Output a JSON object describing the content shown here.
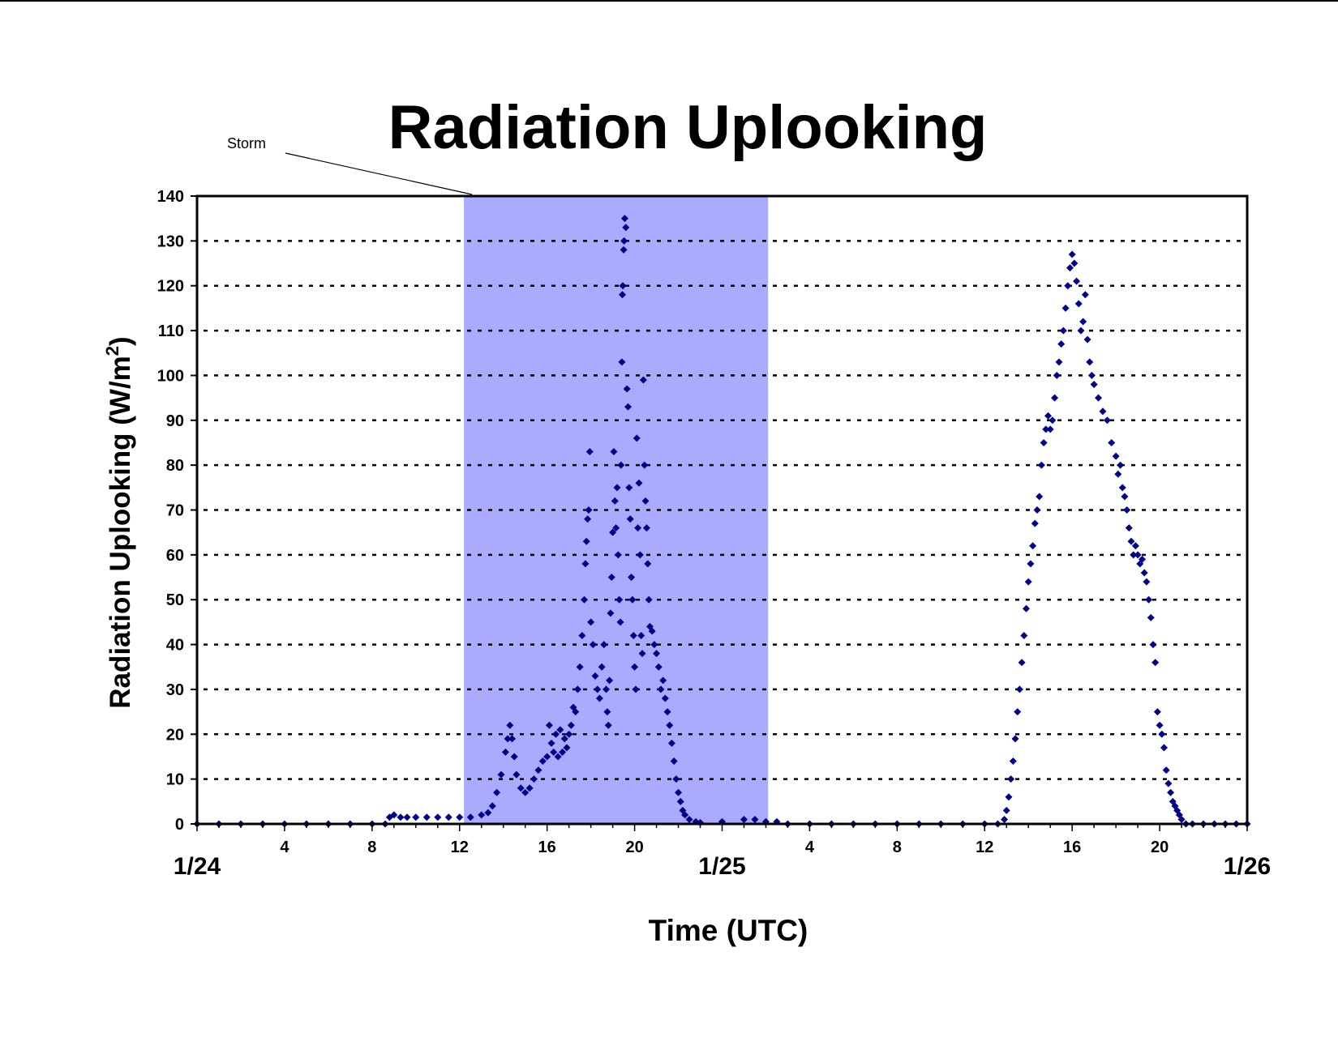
{
  "chart_data": {
    "type": "scatter",
    "title": "Radiation Uplooking",
    "xlabel": "Time (UTC)",
    "ylabel": "Radiation Uplooking (W/m",
    "ylabel_sup": "2",
    "ylabel_close": ")",
    "ylim": [
      0,
      140
    ],
    "yticks": [
      0,
      10,
      20,
      30,
      40,
      50,
      60,
      70,
      80,
      90,
      100,
      110,
      120,
      130,
      140
    ],
    "xlim_hours": [
      0,
      48
    ],
    "hour_ticks": [
      {
        "hour": 4,
        "label": "4"
      },
      {
        "hour": 8,
        "label": "8"
      },
      {
        "hour": 12,
        "label": "12"
      },
      {
        "hour": 16,
        "label": "16"
      },
      {
        "hour": 20,
        "label": "20"
      },
      {
        "hour": 28,
        "label": "4"
      },
      {
        "hour": 32,
        "label": "8"
      },
      {
        "hour": 36,
        "label": "12"
      },
      {
        "hour": 40,
        "label": "16"
      },
      {
        "hour": 44,
        "label": "20"
      }
    ],
    "day_ticks": [
      {
        "hour": 0,
        "label": "1/24"
      },
      {
        "hour": 24,
        "label": "1/25"
      },
      {
        "hour": 48,
        "label": "1/26"
      }
    ],
    "grid": "horizontal-dashed",
    "marker_color": "#00008B",
    "shade_color": "#AAAAFF",
    "annotation": {
      "text": "Storm",
      "x_start": 12.2,
      "x_end": 26.1
    },
    "series": [
      {
        "points": [
          [
            0.0,
            0
          ],
          [
            1.0,
            0
          ],
          [
            2.0,
            0
          ],
          [
            3.0,
            0
          ],
          [
            4.0,
            0
          ],
          [
            5.0,
            0
          ],
          [
            6.0,
            0
          ],
          [
            7.0,
            0
          ],
          [
            8.0,
            0
          ],
          [
            8.6,
            0
          ],
          [
            8.8,
            1.5
          ],
          [
            9.0,
            2
          ],
          [
            9.3,
            1.5
          ],
          [
            9.6,
            1.5
          ],
          [
            10.0,
            1.5
          ],
          [
            10.5,
            1.5
          ],
          [
            11.0,
            1.5
          ],
          [
            11.5,
            1.5
          ],
          [
            12.0,
            1.5
          ],
          [
            12.5,
            1.5
          ],
          [
            13.0,
            2
          ],
          [
            13.3,
            2.5
          ],
          [
            13.5,
            4
          ],
          [
            13.7,
            7
          ],
          [
            13.9,
            11
          ],
          [
            14.1,
            16
          ],
          [
            14.2,
            19
          ],
          [
            14.3,
            22
          ],
          [
            14.4,
            19
          ],
          [
            14.5,
            15
          ],
          [
            14.6,
            11
          ],
          [
            14.8,
            8
          ],
          [
            15.0,
            7
          ],
          [
            15.2,
            8
          ],
          [
            15.4,
            10
          ],
          [
            15.6,
            12
          ],
          [
            15.8,
            14
          ],
          [
            16.0,
            15
          ],
          [
            16.1,
            22
          ],
          [
            16.2,
            18
          ],
          [
            16.3,
            16
          ],
          [
            16.4,
            20
          ],
          [
            16.5,
            15
          ],
          [
            16.6,
            21
          ],
          [
            16.7,
            16
          ],
          [
            16.8,
            19
          ],
          [
            16.9,
            17
          ],
          [
            17.0,
            20
          ],
          [
            17.1,
            22
          ],
          [
            17.2,
            26
          ],
          [
            17.3,
            25
          ],
          [
            17.4,
            30
          ],
          [
            17.5,
            35
          ],
          [
            17.6,
            42
          ],
          [
            17.7,
            50
          ],
          [
            17.75,
            58
          ],
          [
            17.8,
            63
          ],
          [
            17.85,
            68
          ],
          [
            17.9,
            70
          ],
          [
            17.95,
            83
          ],
          [
            18.0,
            45
          ],
          [
            18.1,
            40
          ],
          [
            18.2,
            33
          ],
          [
            18.3,
            30
          ],
          [
            18.4,
            28
          ],
          [
            18.5,
            35
          ],
          [
            18.6,
            40
          ],
          [
            18.7,
            30
          ],
          [
            18.75,
            25
          ],
          [
            18.8,
            22
          ],
          [
            18.85,
            32
          ],
          [
            18.9,
            47
          ],
          [
            18.95,
            55
          ],
          [
            19.0,
            65
          ],
          [
            19.05,
            83
          ],
          [
            19.1,
            72
          ],
          [
            19.15,
            66
          ],
          [
            19.2,
            75
          ],
          [
            19.25,
            60
          ],
          [
            19.3,
            50
          ],
          [
            19.35,
            45
          ],
          [
            19.38,
            80
          ],
          [
            19.42,
            103
          ],
          [
            19.44,
            118
          ],
          [
            19.46,
            120
          ],
          [
            19.5,
            128
          ],
          [
            19.52,
            130
          ],
          [
            19.55,
            135
          ],
          [
            19.6,
            133
          ],
          [
            19.65,
            97
          ],
          [
            19.7,
            93
          ],
          [
            19.75,
            75
          ],
          [
            19.8,
            68
          ],
          [
            19.85,
            55
          ],
          [
            19.9,
            50
          ],
          [
            19.95,
            42
          ],
          [
            20.0,
            35
          ],
          [
            20.05,
            30
          ],
          [
            20.1,
            86
          ],
          [
            20.15,
            66
          ],
          [
            20.2,
            76
          ],
          [
            20.25,
            60
          ],
          [
            20.3,
            42
          ],
          [
            20.35,
            38
          ],
          [
            20.4,
            99
          ],
          [
            20.45,
            80
          ],
          [
            20.5,
            72
          ],
          [
            20.55,
            66
          ],
          [
            20.6,
            58
          ],
          [
            20.65,
            50
          ],
          [
            20.7,
            44
          ],
          [
            20.8,
            43
          ],
          [
            20.9,
            40
          ],
          [
            21.0,
            38
          ],
          [
            21.1,
            35
          ],
          [
            21.2,
            30
          ],
          [
            21.3,
            32
          ],
          [
            21.4,
            28
          ],
          [
            21.5,
            25
          ],
          [
            21.6,
            22
          ],
          [
            21.7,
            18
          ],
          [
            21.8,
            14
          ],
          [
            21.9,
            10
          ],
          [
            22.0,
            7
          ],
          [
            22.1,
            5
          ],
          [
            22.2,
            3
          ],
          [
            22.3,
            2
          ],
          [
            22.5,
            1
          ],
          [
            22.8,
            0.5
          ],
          [
            23.0,
            0.3
          ],
          [
            24.0,
            0.5
          ],
          [
            25.0,
            1
          ],
          [
            25.5,
            1
          ],
          [
            26.0,
            0.5
          ],
          [
            26.5,
            0.5
          ],
          [
            27.0,
            0
          ],
          [
            28.0,
            0
          ],
          [
            29.0,
            0
          ],
          [
            30.0,
            0
          ],
          [
            31.0,
            0
          ],
          [
            32.0,
            0
          ],
          [
            33.0,
            0
          ],
          [
            34.0,
            0
          ],
          [
            35.0,
            0
          ],
          [
            36.0,
            0
          ],
          [
            36.6,
            0
          ],
          [
            36.9,
            1
          ],
          [
            37.0,
            3
          ],
          [
            37.1,
            6
          ],
          [
            37.2,
            10
          ],
          [
            37.3,
            14
          ],
          [
            37.4,
            19
          ],
          [
            37.5,
            25
          ],
          [
            37.6,
            30
          ],
          [
            37.7,
            36
          ],
          [
            37.8,
            42
          ],
          [
            37.9,
            48
          ],
          [
            38.0,
            54
          ],
          [
            38.1,
            58
          ],
          [
            38.2,
            62
          ],
          [
            38.3,
            67
          ],
          [
            38.4,
            70
          ],
          [
            38.5,
            73
          ],
          [
            38.6,
            80
          ],
          [
            38.7,
            85
          ],
          [
            38.8,
            88
          ],
          [
            38.9,
            91
          ],
          [
            39.0,
            88
          ],
          [
            39.1,
            90
          ],
          [
            39.2,
            95
          ],
          [
            39.3,
            100
          ],
          [
            39.4,
            103
          ],
          [
            39.5,
            107
          ],
          [
            39.6,
            110
          ],
          [
            39.7,
            115
          ],
          [
            39.8,
            120
          ],
          [
            39.9,
            124
          ],
          [
            40.0,
            127
          ],
          [
            40.1,
            125
          ],
          [
            40.2,
            121
          ],
          [
            40.3,
            116
          ],
          [
            40.4,
            110
          ],
          [
            40.5,
            112
          ],
          [
            40.6,
            118
          ],
          [
            40.7,
            108
          ],
          [
            40.8,
            103
          ],
          [
            40.9,
            100
          ],
          [
            41.0,
            98
          ],
          [
            41.2,
            95
          ],
          [
            41.4,
            92
          ],
          [
            41.6,
            90
          ],
          [
            41.8,
            85
          ],
          [
            42.0,
            82
          ],
          [
            42.1,
            78
          ],
          [
            42.2,
            80
          ],
          [
            42.3,
            75
          ],
          [
            42.4,
            73
          ],
          [
            42.5,
            70
          ],
          [
            42.6,
            66
          ],
          [
            42.7,
            63
          ],
          [
            42.8,
            60
          ],
          [
            42.9,
            62
          ],
          [
            43.0,
            60
          ],
          [
            43.1,
            58
          ],
          [
            43.2,
            59
          ],
          [
            43.3,
            56
          ],
          [
            43.4,
            54
          ],
          [
            43.5,
            50
          ],
          [
            43.6,
            46
          ],
          [
            43.7,
            40
          ],
          [
            43.8,
            36
          ],
          [
            43.9,
            25
          ],
          [
            44.0,
            22
          ],
          [
            44.1,
            20
          ],
          [
            44.2,
            17
          ],
          [
            44.3,
            12
          ],
          [
            44.4,
            9
          ],
          [
            44.5,
            7
          ],
          [
            44.6,
            5
          ],
          [
            44.7,
            4
          ],
          [
            44.8,
            3
          ],
          [
            44.9,
            2
          ],
          [
            45.0,
            1
          ],
          [
            45.2,
            0
          ],
          [
            45.5,
            0
          ],
          [
            46.0,
            0
          ],
          [
            46.5,
            0
          ],
          [
            47.0,
            0
          ],
          [
            47.5,
            0
          ],
          [
            48.0,
            0
          ]
        ]
      }
    ]
  }
}
